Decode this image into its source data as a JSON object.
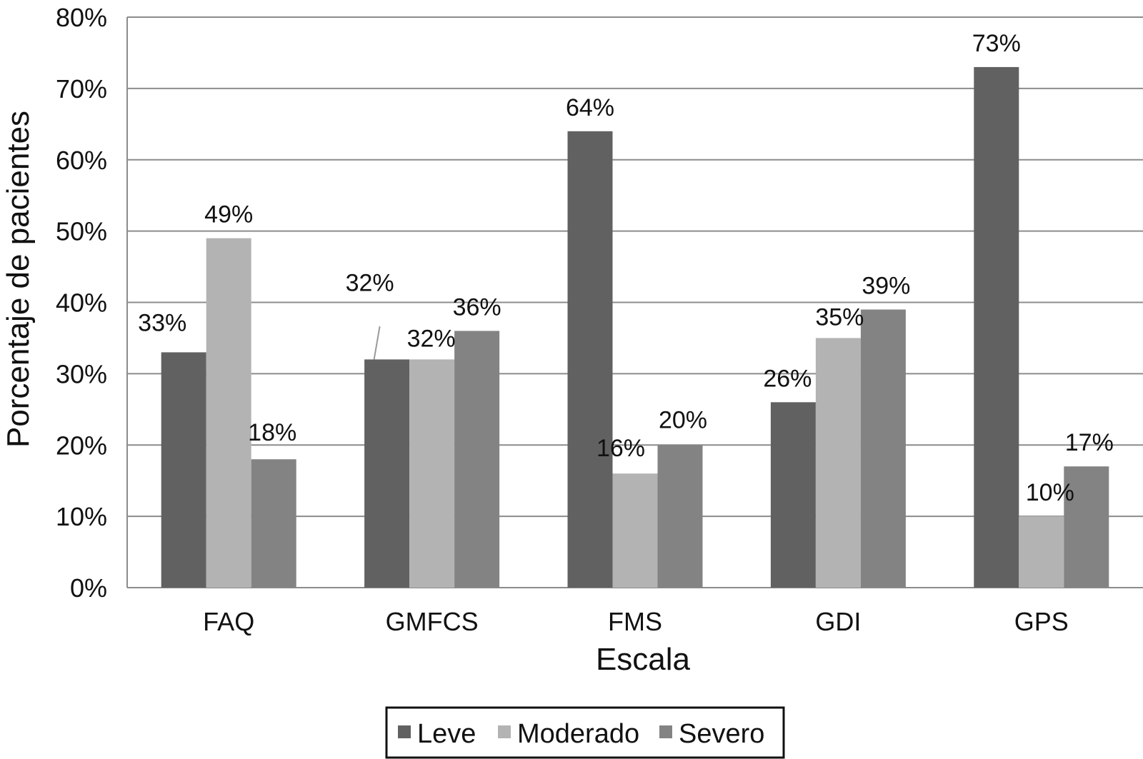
{
  "chart_data": {
    "type": "bar",
    "title": "",
    "xlabel": "Escala",
    "ylabel": "Porcentaje de pacientes",
    "categories": [
      "FAQ",
      "GMFCS",
      "FMS",
      "GDI",
      "GPS"
    ],
    "series": [
      {
        "name": "Leve",
        "color": "#616161",
        "values": [
          33,
          32,
          64,
          26,
          73
        ],
        "labels": [
          "33%",
          "32%",
          "64%",
          "26%",
          "73%"
        ]
      },
      {
        "name": "Moderado",
        "color": "#b3b3b3",
        "values": [
          49,
          32,
          16,
          35,
          10
        ],
        "labels": [
          "49%",
          "32%",
          "16%",
          "35%",
          "10%"
        ]
      },
      {
        "name": "Severo",
        "color": "#838383",
        "values": [
          18,
          36,
          20,
          39,
          17
        ],
        "labels": [
          "18%",
          "36%",
          "20%",
          "39%",
          "17%"
        ]
      }
    ],
    "ylim": [
      0,
      80
    ],
    "yticks": [
      "0%",
      "10%",
      "20%",
      "30%",
      "40%",
      "50%",
      "60%",
      "70%",
      "80%"
    ],
    "grid": true,
    "legend_position": "bottom"
  }
}
